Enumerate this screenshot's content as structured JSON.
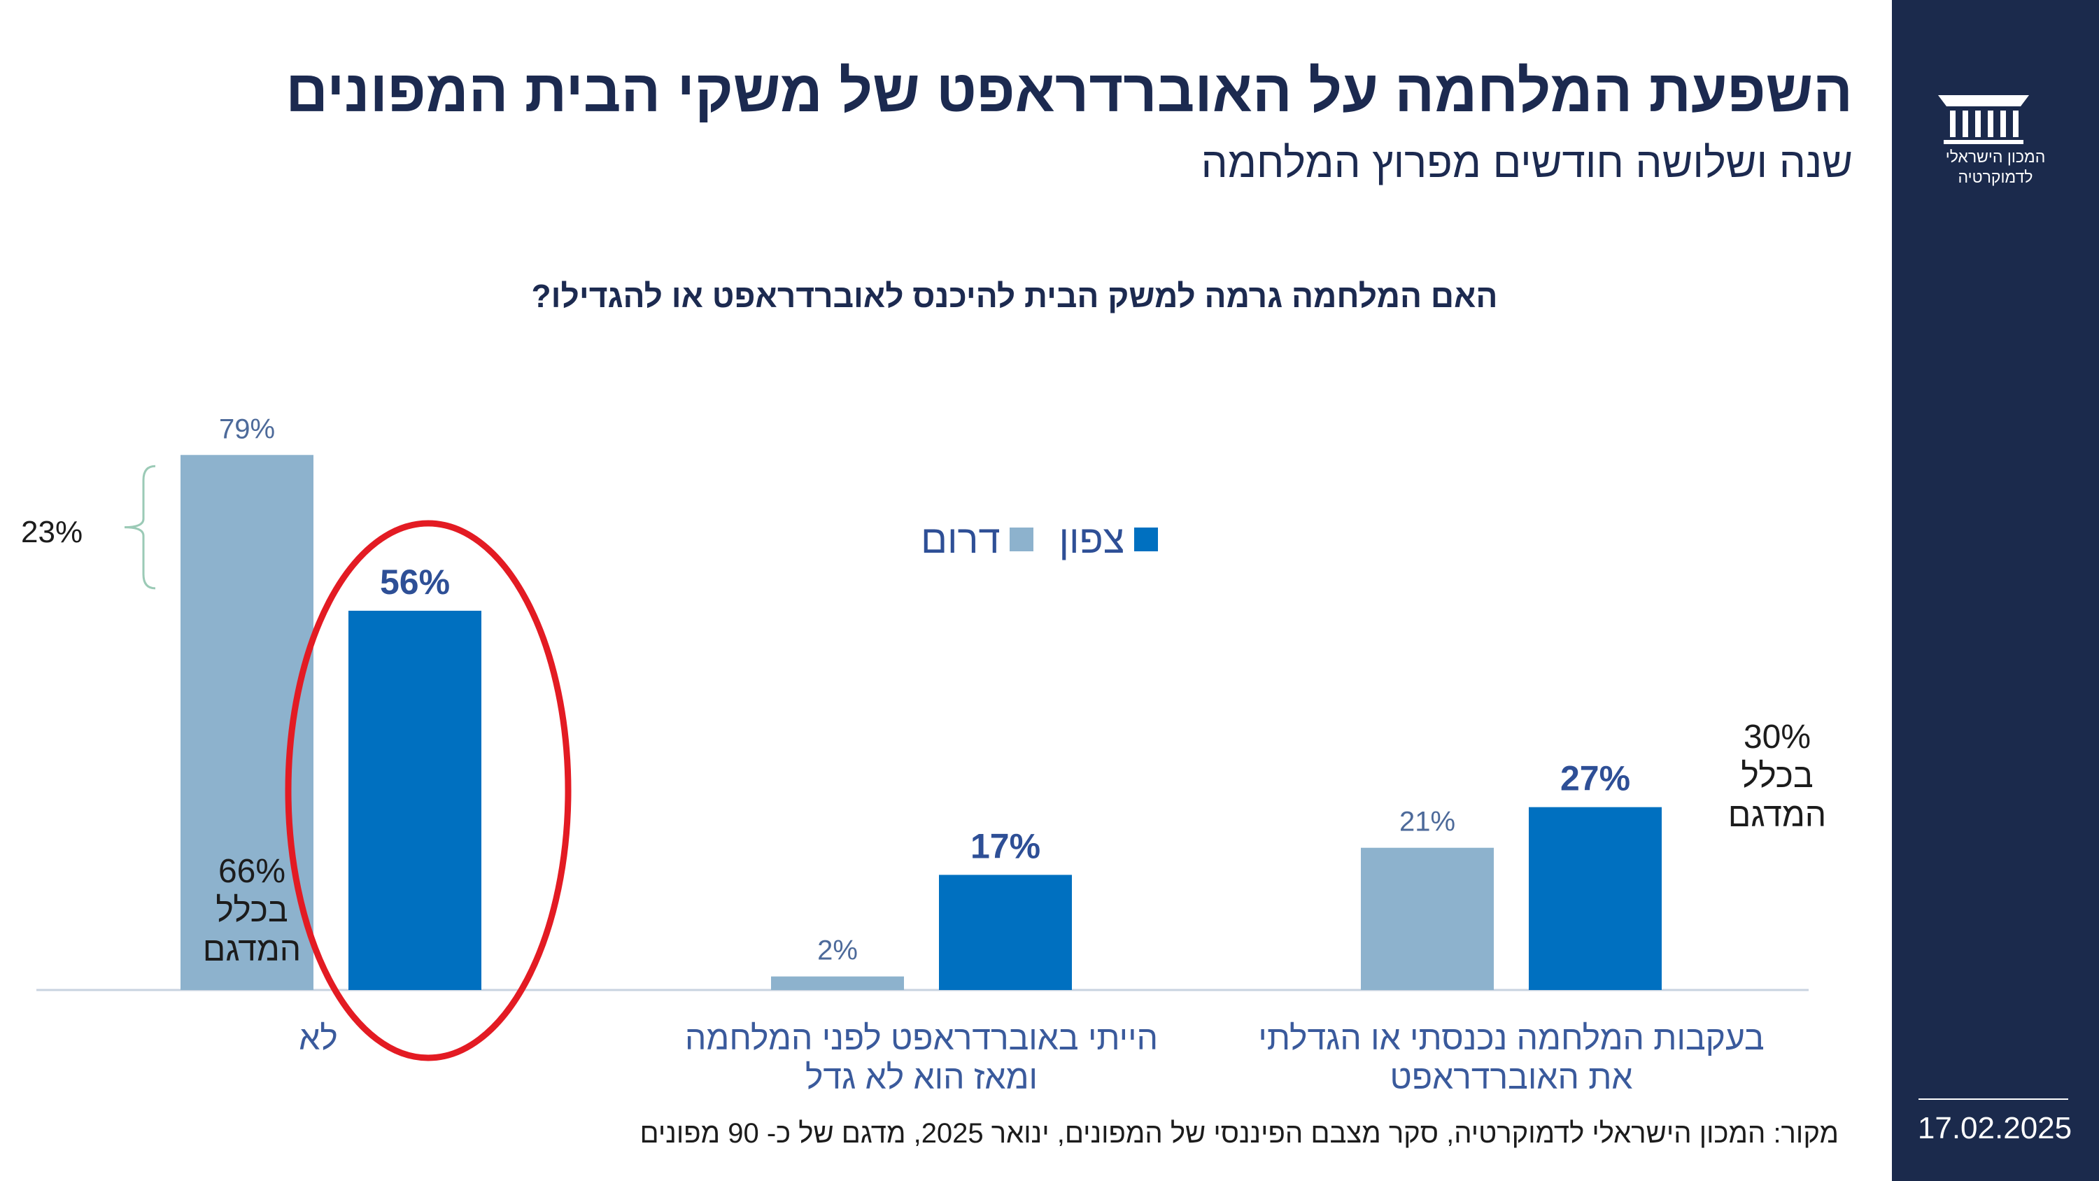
{
  "header": {
    "title": "השפעת המלחמה על האוברדראפט של משקי הבית המפונים",
    "subtitle": "שנה ושלושה חודשים מפרוץ המלחמה"
  },
  "sidebar": {
    "logo_text_line1": "המכון הישראלי",
    "logo_text_line2": "לדמוקרטיה",
    "date": "17.02.2025"
  },
  "source": "מקור: המכון הישראלי לדמוקרטיה,  סקר מצבם הפיננסי של המפונים, ינואר 2025, מדגם של כ- 90 מפונים",
  "annotations": {
    "bracket_label": "23%",
    "overall_no": [
      "66%",
      "בכלל",
      "המדגם"
    ],
    "overall_increased": [
      "30%",
      "בכלל",
      "המדגם"
    ]
  },
  "colors": {
    "south": "#8db2cd",
    "north": "#0070c0",
    "highlight": "#e31b23",
    "sidebar": "#1b2a4c"
  },
  "chart_data": {
    "type": "bar",
    "title": "האם המלחמה גרמה למשק הבית להיכנס לאוברדראפט או להגדילו?",
    "categories": [
      [
        "בעקבות המלחמה נכנסתי או הגדלתי",
        "את האוברדראפט"
      ],
      [
        "הייתי באוברדראפט לפני המלחמה",
        "ומאז הוא לא גדל"
      ],
      [
        "לא"
      ]
    ],
    "series": [
      {
        "name": "דרום",
        "values": [
          21,
          2,
          79
        ],
        "labels": [
          "21%",
          "2%",
          "79%"
        ]
      },
      {
        "name": "צפון",
        "values": [
          27,
          17,
          56
        ],
        "labels": [
          "27%",
          "17%",
          "56%"
        ]
      }
    ],
    "ylim": [
      0,
      100
    ],
    "legend": "top-center",
    "grid": false
  }
}
